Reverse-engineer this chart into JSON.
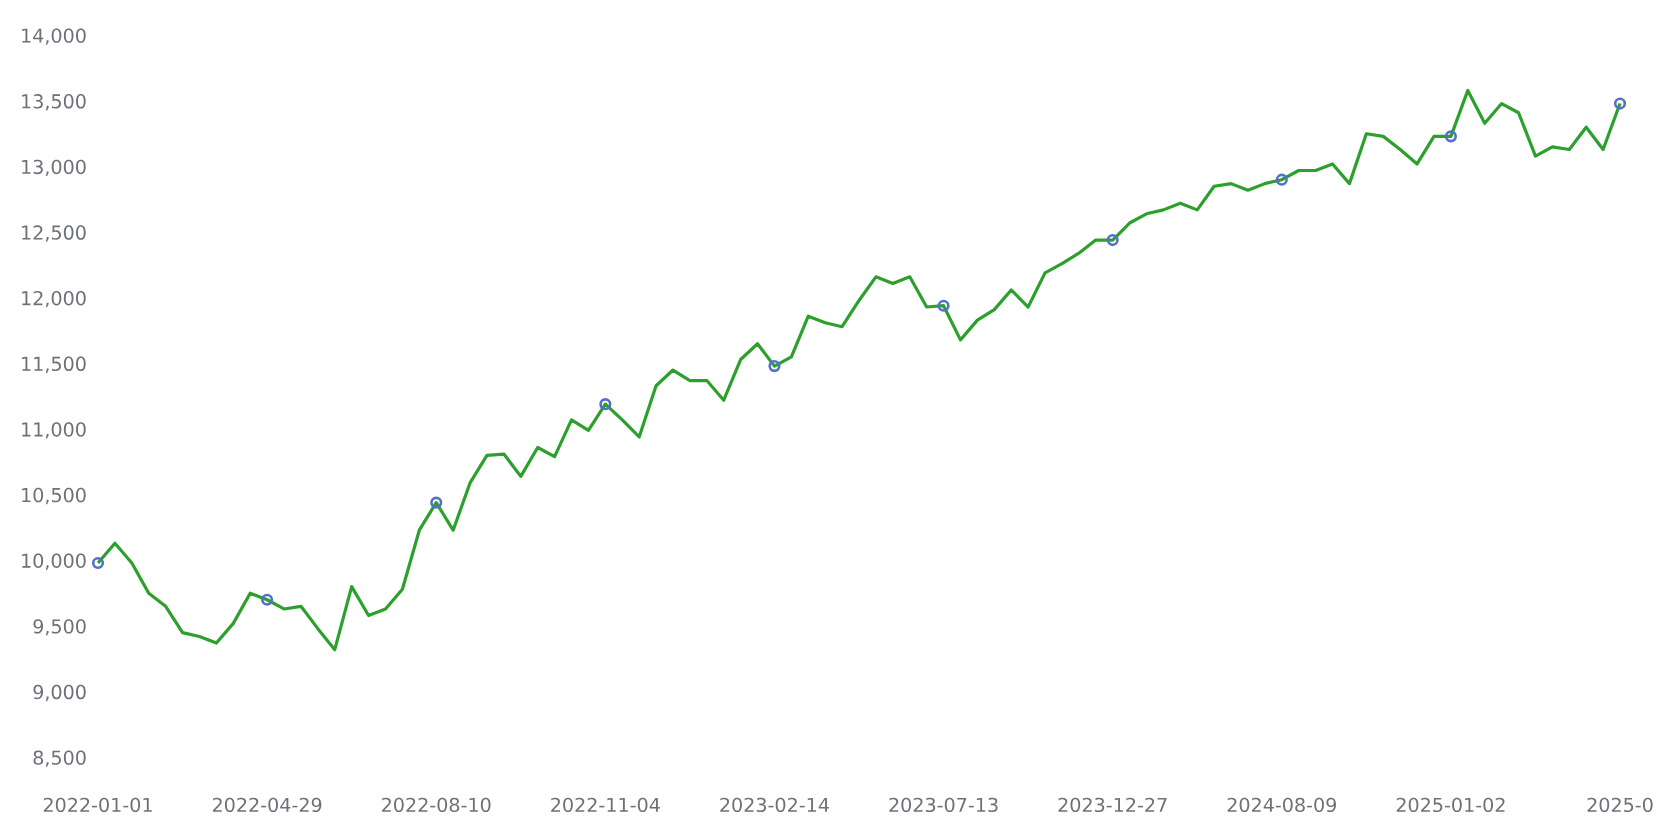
{
  "chart_data": {
    "type": "line",
    "categories": [
      "2022-01-01",
      null,
      null,
      null,
      null,
      null,
      null,
      null,
      null,
      null,
      "2022-04-29",
      null,
      null,
      null,
      null,
      null,
      null,
      null,
      null,
      null,
      "2022-08-10",
      null,
      null,
      null,
      null,
      null,
      null,
      null,
      null,
      null,
      "2022-11-04",
      null,
      null,
      null,
      null,
      null,
      null,
      null,
      null,
      null,
      "2023-02-14",
      null,
      null,
      null,
      null,
      null,
      null,
      null,
      null,
      null,
      "2023-07-13",
      null,
      null,
      null,
      null,
      null,
      null,
      null,
      null,
      null,
      "2023-12-27",
      null,
      null,
      null,
      null,
      null,
      null,
      null,
      null,
      null,
      "2024-08-09",
      null,
      null,
      null,
      null,
      null,
      null,
      null,
      null,
      null,
      "2025-01-02",
      null,
      null,
      null,
      null,
      null,
      null,
      null,
      null,
      null,
      "2025-0"
    ],
    "series": [
      {
        "color": "#2ca02c",
        "values": [
          9990,
          10140,
          9990,
          9760,
          9660,
          9460,
          9430,
          9380,
          9530,
          9760,
          9710,
          9640,
          9660,
          9490,
          9330,
          9810,
          9590,
          9640,
          9790,
          10240,
          10450,
          10240,
          10600,
          10810,
          10820,
          10650,
          10870,
          10800,
          11080,
          11000,
          11200,
          11080,
          10950,
          11340,
          11460,
          11380,
          11380,
          11230,
          11540,
          11660,
          11490,
          11560,
          11870,
          11820,
          11790,
          11990,
          12170,
          12120,
          12170,
          11940,
          11950,
          11690,
          11840,
          11920,
          12070,
          11940,
          12200,
          12270,
          12350,
          12450,
          12450,
          12580,
          12650,
          12680,
          12730,
          12680,
          12860,
          12880,
          12830,
          12880,
          12910,
          12980,
          12980,
          13030,
          12880,
          13260,
          13240,
          13140,
          13030,
          13240,
          13240,
          13590,
          13340,
          13490,
          13420,
          13090,
          13160,
          13140,
          13310,
          13140,
          13490
        ]
      },
      {
        "type": "scatter",
        "color": "#5470c6",
        "marker": "circle",
        "values": [
          9990,
          null,
          null,
          null,
          null,
          null,
          null,
          null,
          null,
          null,
          9710,
          null,
          null,
          null,
          null,
          null,
          null,
          null,
          null,
          null,
          10450,
          null,
          null,
          null,
          null,
          null,
          null,
          null,
          null,
          null,
          11200,
          null,
          null,
          null,
          null,
          null,
          null,
          null,
          null,
          null,
          11490,
          null,
          null,
          null,
          null,
          null,
          null,
          null,
          null,
          null,
          11950,
          null,
          null,
          null,
          null,
          null,
          null,
          null,
          null,
          null,
          12450,
          null,
          null,
          null,
          null,
          null,
          null,
          null,
          null,
          null,
          12910,
          null,
          null,
          null,
          null,
          null,
          null,
          null,
          null,
          null,
          13240,
          null,
          null,
          null,
          null,
          null,
          null,
          null,
          null,
          null,
          13490
        ]
      }
    ],
    "ylim": [
      8500,
      14000
    ],
    "yticks": [
      {
        "value": 8500,
        "label": "8,500"
      },
      {
        "value": 9000,
        "label": "9,000"
      },
      {
        "value": 9500,
        "label": "9,500"
      },
      {
        "value": 10000,
        "label": "10,000"
      },
      {
        "value": 10500,
        "label": "10,500"
      },
      {
        "value": 11000,
        "label": "11,000"
      },
      {
        "value": 11500,
        "label": "11,500"
      },
      {
        "value": 12000,
        "label": "12,000"
      },
      {
        "value": 12500,
        "label": "12,500"
      },
      {
        "value": 13000,
        "label": "13,000"
      },
      {
        "value": 13500,
        "label": "13,500"
      },
      {
        "value": 14000,
        "label": "14,000"
      }
    ],
    "grid": false,
    "legend": false
  }
}
